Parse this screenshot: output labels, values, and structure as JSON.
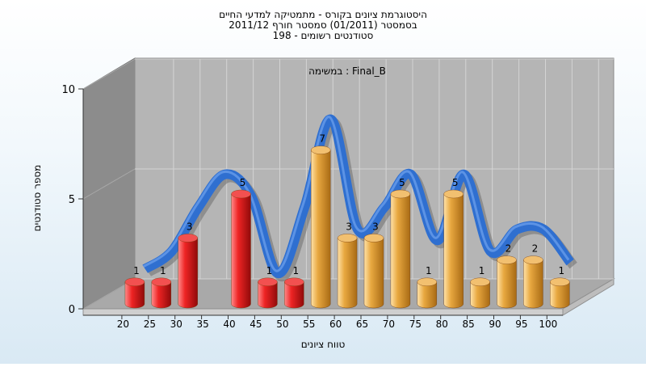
{
  "chart_data": {
    "type": "bar",
    "title_lines": [
      "היסטוגרמת ציונים בקורס - מתמטיקה למדעי החיים",
      "בסמסטר   (01/2011)  סמסטר חורף 2011/12",
      "סטודנטים רשומים - 198"
    ],
    "subtitle": "במשימה : Final_B",
    "xlabel": "טווח ציונים",
    "ylabel": "מספר סטודנטים",
    "ylim": [
      0,
      10
    ],
    "y_ticks": [
      "0",
      "5",
      "10"
    ],
    "x_ticks": [
      "20",
      "25",
      "30",
      "35",
      "40",
      "45",
      "50",
      "55",
      "60",
      "65",
      "70",
      "75",
      "80",
      "85",
      "90",
      "95",
      "100"
    ],
    "bars": [
      {
        "x": 20,
        "value": 1,
        "group": "fail"
      },
      {
        "x": 25,
        "value": 1,
        "group": "fail"
      },
      {
        "x": 30,
        "value": 3,
        "group": "fail"
      },
      {
        "x": 40,
        "value": 5,
        "group": "fail"
      },
      {
        "x": 45,
        "value": 1,
        "group": "fail"
      },
      {
        "x": 50,
        "value": 1,
        "group": "fail"
      },
      {
        "x": 55,
        "value": 7,
        "group": "pass"
      },
      {
        "x": 60,
        "value": 3,
        "group": "pass"
      },
      {
        "x": 65,
        "value": 3,
        "group": "pass"
      },
      {
        "x": 70,
        "value": 5,
        "group": "pass"
      },
      {
        "x": 75,
        "value": 1,
        "group": "pass"
      },
      {
        "x": 80,
        "value": 5,
        "group": "pass"
      },
      {
        "x": 85,
        "value": 1,
        "group": "pass"
      },
      {
        "x": 90,
        "value": 2,
        "group": "pass"
      },
      {
        "x": 95,
        "value": 2,
        "group": "pass"
      },
      {
        "x": 100,
        "value": 1,
        "group": "pass"
      }
    ],
    "curve": [
      {
        "x": 22.5,
        "y": 1.2
      },
      {
        "x": 27.5,
        "y": 2.0
      },
      {
        "x": 32.5,
        "y": 4.0
      },
      {
        "x": 37.5,
        "y": 5.5
      },
      {
        "x": 42.5,
        "y": 4.5
      },
      {
        "x": 47.5,
        "y": 1.0
      },
      {
        "x": 52.5,
        "y": 4.0
      },
      {
        "x": 57.5,
        "y": 8.0
      },
      {
        "x": 62.5,
        "y": 3.0
      },
      {
        "x": 67.5,
        "y": 4.0
      },
      {
        "x": 72.5,
        "y": 5.5
      },
      {
        "x": 77.5,
        "y": 2.5
      },
      {
        "x": 82.5,
        "y": 5.5
      },
      {
        "x": 87.5,
        "y": 2.0
      },
      {
        "x": 92.5,
        "y": 3.0
      },
      {
        "x": 97.5,
        "y": 3.0
      },
      {
        "x": 102.5,
        "y": 1.5
      }
    ],
    "colors": {
      "fail": "#e02020",
      "pass": "#e8a840",
      "curve": "#2f6fd0",
      "curve_shadow": "#6e6e6e",
      "back_wall": "#b5b5b5",
      "side_wall": "#8c8c8c",
      "floor": "#a9a9a9"
    },
    "grid": true
  }
}
